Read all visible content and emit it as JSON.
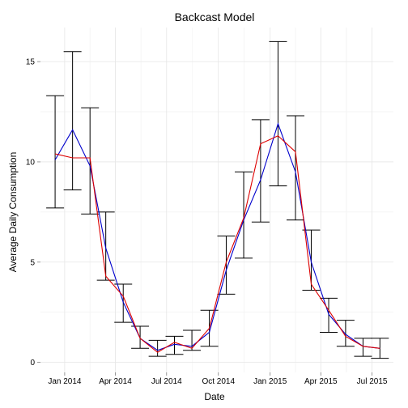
{
  "chart_data": {
    "type": "line",
    "title": "Backcast Model",
    "xlabel": "Date",
    "ylabel": "Average Daily Consumption",
    "x_ticks": [
      {
        "date": "2014-01-01",
        "label": "Jan 2014"
      },
      {
        "date": "2014-04-01",
        "label": "Apr 2014"
      },
      {
        "date": "2014-07-01",
        "label": "Jul 2014"
      },
      {
        "date": "2014-10-01",
        "label": "Oct 2014"
      },
      {
        "date": "2015-01-01",
        "label": "Jan 2015"
      },
      {
        "date": "2015-04-01",
        "label": "Apr 2015"
      },
      {
        "date": "2015-07-01",
        "label": "Jul 2015"
      }
    ],
    "y_ticks": [
      0,
      5,
      10,
      15
    ],
    "xlim": [
      "2013-11-19",
      "2015-08-08"
    ],
    "ylim": [
      -0.5,
      16.7
    ],
    "grid": true,
    "x": [
      "2013-12-15",
      "2014-01-15",
      "2014-02-15",
      "2014-03-15",
      "2014-04-15",
      "2014-05-15",
      "2014-06-15",
      "2014-07-15",
      "2014-08-15",
      "2014-09-15",
      "2014-10-15",
      "2014-11-15",
      "2014-12-15",
      "2015-01-15",
      "2015-02-15",
      "2015-03-15",
      "2015-04-15",
      "2015-05-15",
      "2015-06-15",
      "2015-07-15"
    ],
    "error_bars": {
      "low": [
        7.7,
        8.6,
        7.4,
        4.1,
        2.0,
        0.7,
        0.3,
        0.4,
        0.6,
        0.8,
        3.4,
        5.2,
        7.0,
        8.8,
        7.1,
        3.6,
        1.5,
        0.8,
        0.3,
        0.2
      ],
      "high": [
        13.3,
        15.5,
        12.7,
        7.5,
        3.9,
        1.8,
        1.1,
        1.3,
        1.6,
        2.6,
        6.3,
        9.5,
        12.1,
        16.0,
        12.3,
        6.6,
        3.2,
        2.1,
        1.2,
        1.2
      ]
    },
    "series": [
      {
        "color": "#0000cc",
        "values": [
          10.1,
          11.6,
          9.8,
          5.7,
          3.0,
          1.2,
          0.6,
          0.9,
          0.8,
          1.5,
          4.6,
          7.1,
          9.1,
          11.9,
          9.5,
          5.0,
          2.4,
          1.4,
          0.8,
          0.7
        ]
      },
      {
        "color": "#dd0000",
        "values": [
          10.4,
          10.2,
          10.2,
          4.3,
          3.3,
          1.2,
          0.5,
          1.0,
          0.7,
          1.7,
          5.0,
          7.2,
          10.9,
          11.3,
          10.5,
          3.9,
          2.6,
          1.3,
          0.8,
          0.7
        ]
      }
    ]
  }
}
